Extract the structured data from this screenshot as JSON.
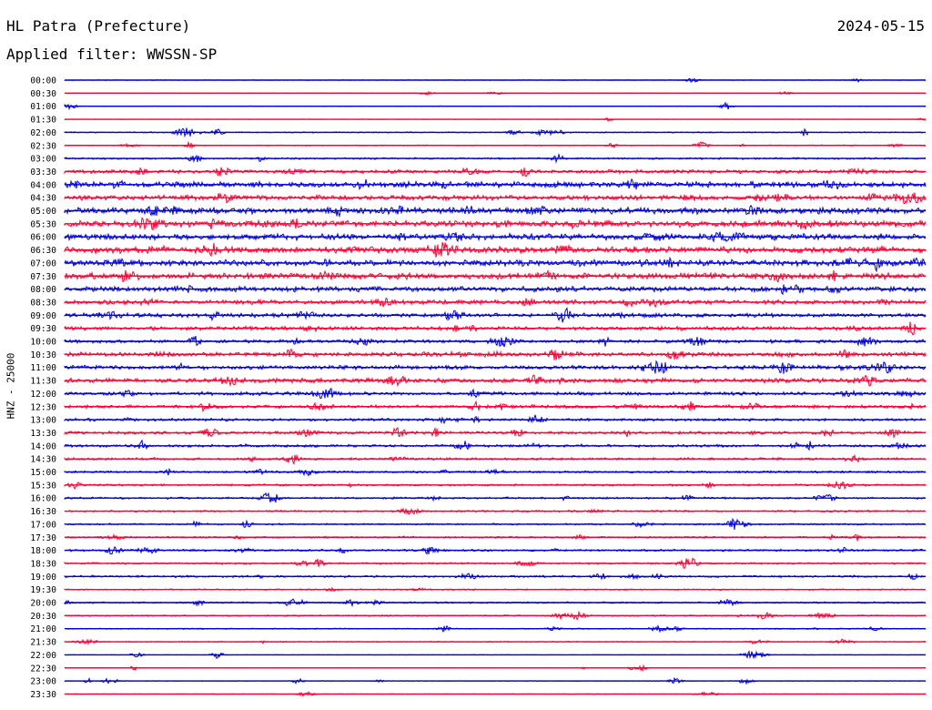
{
  "header": {
    "station": "HL Patra (Prefecture)",
    "date": "2024-05-15",
    "filter_label": "Applied filter:",
    "filter_value": "WWSSN-SP"
  },
  "colors": {
    "even_trace": "#0000e0",
    "odd_trace": "#ff0033",
    "background": "#ffffff"
  },
  "chart_data": {
    "type": "line",
    "ylabel": "HNZ - 25000",
    "row_labels": [
      "00:00",
      "00:30",
      "01:00",
      "01:30",
      "02:00",
      "02:30",
      "03:00",
      "03:30",
      "04:00",
      "04:30",
      "05:00",
      "05:30",
      "06:00",
      "06:30",
      "07:00",
      "07:30",
      "08:00",
      "08:30",
      "09:00",
      "09:30",
      "10:00",
      "10:30",
      "11:00",
      "11:30",
      "12:00",
      "12:30",
      "13:00",
      "13:30",
      "14:00",
      "14:30",
      "15:00",
      "15:30",
      "16:00",
      "16:30",
      "17:00",
      "17:30",
      "18:00",
      "18:30",
      "19:00",
      "19:30",
      "20:00",
      "20:30",
      "21:00",
      "21:30",
      "22:00",
      "22:30",
      "23:00",
      "23:30"
    ],
    "noise_level": [
      0.2,
      0.2,
      0.3,
      0.15,
      0.5,
      0.45,
      0.8,
      1.6,
      2.4,
      2.2,
      2.6,
      2.8,
      2.6,
      2.8,
      2.6,
      2.6,
      2.2,
      1.9,
      1.8,
      1.6,
      1.4,
      1.8,
      1.8,
      1.9,
      1.5,
      1.4,
      1.2,
      1.2,
      1.1,
      1.0,
      0.9,
      0.9,
      0.9,
      0.8,
      0.7,
      0.8,
      0.9,
      0.8,
      0.9,
      0.6,
      0.7,
      0.6,
      0.5,
      0.4,
      0.2,
      0.25,
      0.2,
      0.2
    ],
    "series": [
      {
        "name": "blue",
        "values": [
          0,
          2,
          4,
          6,
          8,
          10,
          12,
          14,
          16,
          18,
          20,
          22,
          24,
          26,
          28,
          30,
          32,
          34,
          36,
          38,
          40,
          42,
          44,
          46
        ]
      },
      {
        "name": "red",
        "values": [
          1,
          3,
          5,
          7,
          9,
          11,
          13,
          15,
          17,
          19,
          21,
          23,
          25,
          27,
          29,
          31,
          33,
          35,
          37,
          39,
          41,
          43,
          45,
          47
        ]
      }
    ]
  }
}
